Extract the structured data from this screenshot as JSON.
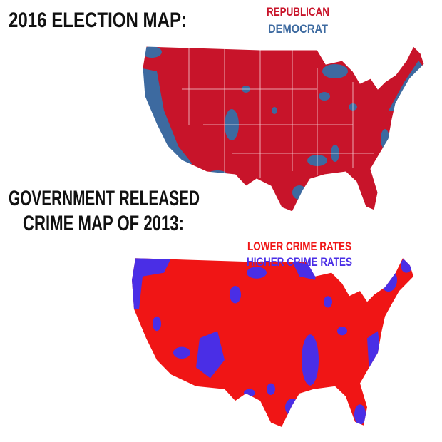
{
  "maps": [
    {
      "title": [
        "2016 ELECTION MAP:"
      ],
      "legend": [
        {
          "label": "REPUBLICAN",
          "color": "#c8142a"
        },
        {
          "label": "DEMOCRAT",
          "color": "#3d6aa0"
        }
      ]
    },
    {
      "title": [
        "GOVERNMENT RELEASED",
        "CRIME MAP OF 2013:"
      ],
      "legend": [
        {
          "label": "LOWER CRIME RATES",
          "color": "#f01515"
        },
        {
          "label": "HIGHER CRIME RATES",
          "color": "#4a2ee6"
        }
      ]
    }
  ]
}
